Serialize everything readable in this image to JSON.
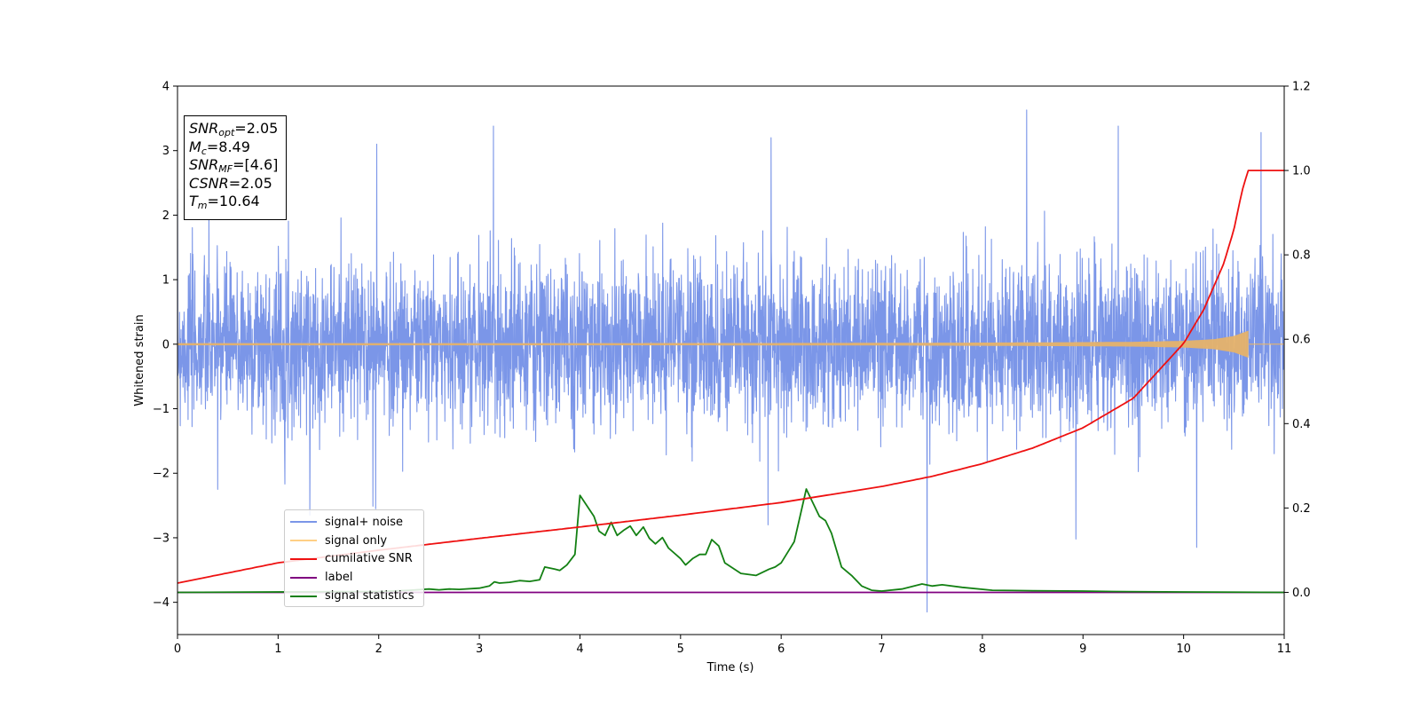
{
  "chart_data": {
    "type": "line",
    "xlabel": "Time (s)",
    "ylabel": "Whitened strain",
    "xlim": [
      0,
      11
    ],
    "ylim_left": [
      -4.5,
      4
    ],
    "ylim_right": [
      -0.1,
      1.2
    ],
    "x_ticks": [
      "0",
      "1",
      "2",
      "3",
      "4",
      "5",
      "6",
      "7",
      "8",
      "9",
      "10",
      "11"
    ],
    "y_left_ticks": [
      "4",
      "3",
      "2",
      "1",
      "0",
      "−1",
      "−2",
      "−3",
      "−4"
    ],
    "y_right_ticks": [
      "1.2",
      "1.0",
      "0.8",
      "0.6",
      "0.4",
      "0.2",
      "0.0"
    ],
    "grid": false,
    "legend_location": "lower-left",
    "annotation": {
      "snr_opt_label": "SNR",
      "snr_opt_sub": "opt",
      "snr_opt_value": "=2.05",
      "mc_label": "M",
      "mc_sub": "c",
      "mc_value": "=8.49",
      "snr_mf_label": "SNR",
      "snr_mf_sub": "MF",
      "snr_mf_value": "=[4.6]",
      "csnr_label": "CSNR",
      "csnr_value": "=2.05",
      "tm_label": "T",
      "tm_sub": "m",
      "tm_value": "=10.64"
    },
    "series": [
      {
        "name": "signal+ noise",
        "axis": "left",
        "color": "#7b96e8",
        "description_values": "white noise, roughly symmetric about 0, typical amplitude about ±1.5, peaks to about ±3.6",
        "peaks": [
          {
            "x": 1.98,
            "y": 3.1
          },
          {
            "x": 3.14,
            "y": 3.38
          },
          {
            "x": 5.9,
            "y": 3.2
          },
          {
            "x": 8.44,
            "y": 3.63
          },
          {
            "x": 9.35,
            "y": 3.38
          },
          {
            "x": 10.77,
            "y": 3.28
          },
          {
            "x": 1.97,
            "y": -2.55
          },
          {
            "x": 5.87,
            "y": -2.8
          },
          {
            "x": 7.45,
            "y": -4.15
          },
          {
            "x": 8.93,
            "y": -3.02
          },
          {
            "x": 10.13,
            "y": -3.15
          },
          {
            "x": 0.4,
            "y": -2.25
          }
        ]
      },
      {
        "name": "signal only",
        "axis": "left",
        "color": "#e6b36b",
        "x": [
          0,
          2,
          4,
          6,
          7,
          8,
          9,
          9.5,
          10,
          10.3,
          10.5,
          10.64,
          10.65,
          11
        ],
        "amplitude": [
          0.01,
          0.01,
          0.01,
          0.012,
          0.014,
          0.018,
          0.025,
          0.03,
          0.045,
          0.07,
          0.12,
          0.2,
          0,
          0
        ]
      },
      {
        "name": "cumilative SNR",
        "axis": "right",
        "color": "#ee1111",
        "x": [
          0,
          1,
          2,
          3,
          4,
          5,
          6,
          7,
          7.5,
          8,
          8.5,
          9,
          9.5,
          10,
          10.2,
          10.4,
          10.5,
          10.58,
          10.64,
          11
        ],
        "y": [
          0.022,
          0.07,
          0.1,
          0.128,
          0.155,
          0.183,
          0.213,
          0.251,
          0.275,
          0.305,
          0.342,
          0.39,
          0.46,
          0.59,
          0.67,
          0.78,
          0.86,
          0.95,
          1.0,
          1.0
        ]
      },
      {
        "name": "label",
        "axis": "right",
        "color": "#800080",
        "x": [
          0,
          11
        ],
        "y": [
          0,
          0
        ]
      },
      {
        "name": "signal statistics",
        "axis": "right",
        "color": "#138013",
        "x": [
          0,
          2,
          2.3,
          2.5,
          2.6,
          2.7,
          2.8,
          3.0,
          3.1,
          3.15,
          3.2,
          3.3,
          3.4,
          3.5,
          3.6,
          3.65,
          3.75,
          3.8,
          3.87,
          3.95,
          4.0,
          4.07,
          4.14,
          4.19,
          4.25,
          4.31,
          4.37,
          4.44,
          4.5,
          4.56,
          4.63,
          4.69,
          4.75,
          4.82,
          4.88,
          5.0,
          5.05,
          5.12,
          5.19,
          5.25,
          5.31,
          5.38,
          5.44,
          5.6,
          5.75,
          5.88,
          5.94,
          6.0,
          6.13,
          6.25,
          6.31,
          6.38,
          6.44,
          6.5,
          6.6,
          6.7,
          6.8,
          6.9,
          7.0,
          7.2,
          7.4,
          7.5,
          7.6,
          7.8,
          8.1,
          8.5,
          9.0,
          9.3,
          10,
          11
        ],
        "y": [
          0.0,
          0.002,
          0.005,
          0.008,
          0.006,
          0.008,
          0.007,
          0.01,
          0.015,
          0.025,
          0.022,
          0.024,
          0.028,
          0.026,
          0.03,
          0.06,
          0.055,
          0.052,
          0.065,
          0.09,
          0.23,
          0.205,
          0.18,
          0.145,
          0.135,
          0.166,
          0.135,
          0.148,
          0.157,
          0.135,
          0.155,
          0.128,
          0.115,
          0.13,
          0.105,
          0.08,
          0.065,
          0.08,
          0.09,
          0.09,
          0.125,
          0.11,
          0.07,
          0.045,
          0.04,
          0.055,
          0.06,
          0.07,
          0.12,
          0.245,
          0.215,
          0.18,
          0.17,
          0.14,
          0.06,
          0.04,
          0.015,
          0.005,
          0.003,
          0.008,
          0.02,
          0.015,
          0.018,
          0.012,
          0.005,
          0.004,
          0.003,
          0.002,
          0.001,
          0.0
        ]
      }
    ]
  }
}
